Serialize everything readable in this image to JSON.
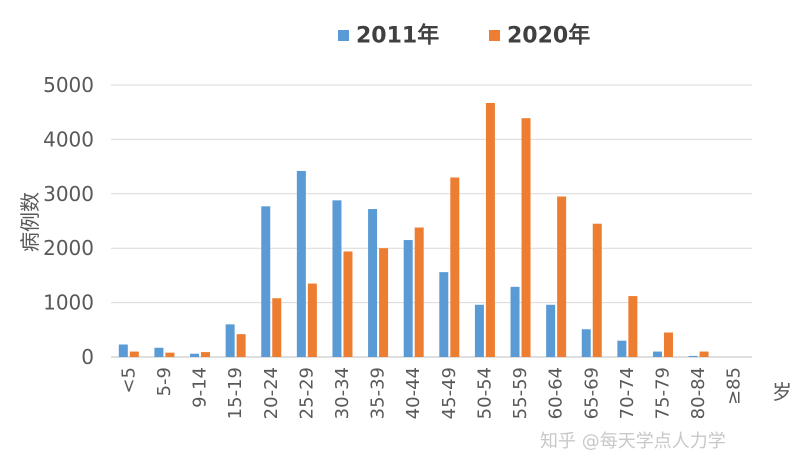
{
  "chart_data": {
    "type": "bar",
    "categories": [
      "<5",
      "5-9",
      "9-14",
      "15-19",
      "20-24",
      "25-29",
      "30-34",
      "35-39",
      "40-44",
      "45-49",
      "50-54",
      "55-59",
      "60-64",
      "65-69",
      "70-74",
      "75-79",
      "80-84",
      "≥85"
    ],
    "series": [
      {
        "name": "2011年",
        "color": "#5b9bd5",
        "values": [
          230,
          170,
          60,
          600,
          2770,
          3420,
          2880,
          2720,
          2150,
          1560,
          960,
          1290,
          960,
          510,
          300,
          100,
          20,
          0
        ]
      },
      {
        "name": "2020年",
        "color": "#ed7d31",
        "values": [
          100,
          80,
          90,
          420,
          1080,
          1350,
          1940,
          2000,
          2380,
          3300,
          4670,
          4390,
          2950,
          2450,
          1120,
          450,
          100,
          0
        ]
      }
    ],
    "ylabel": "病例数",
    "xlabel": "岁",
    "ylim": [
      0,
      5000
    ],
    "yticks": [
      0,
      1000,
      2000,
      3000,
      4000,
      5000
    ],
    "grid": true,
    "legend": "top-center"
  },
  "watermark": "知乎 @每天学点人力学"
}
